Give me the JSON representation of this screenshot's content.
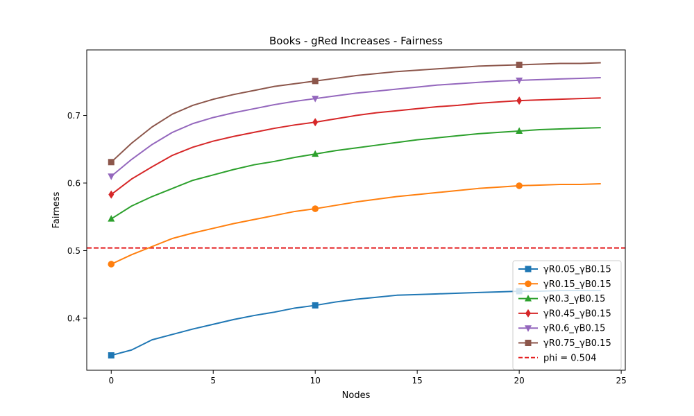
{
  "chart_data": {
    "type": "line",
    "title": "Books - gRed Increases - Fairness",
    "xlabel": "Nodes",
    "ylabel": "Fairness",
    "xlim": [
      -1.2,
      25.2
    ],
    "ylim": [
      0.323,
      0.797
    ],
    "xticks": [
      0,
      5,
      10,
      15,
      20,
      25
    ],
    "yticks": [
      0.4,
      0.5,
      0.6,
      0.7
    ],
    "grid": false,
    "legend_position": "lower-right",
    "x": [
      0,
      1,
      2,
      3,
      4,
      5,
      6,
      7,
      8,
      9,
      10,
      11,
      12,
      13,
      14,
      15,
      16,
      17,
      18,
      19,
      20,
      21,
      22,
      23,
      24
    ],
    "marker_indices": [
      0,
      10,
      20
    ],
    "series": [
      {
        "name": "γR0.05_γB0.15",
        "color": "#1f77b4",
        "marker": "square",
        "values": [
          0.345,
          0.353,
          0.368,
          0.376,
          0.384,
          0.391,
          0.398,
          0.404,
          0.409,
          0.415,
          0.419,
          0.424,
          0.428,
          0.431,
          0.434,
          0.435,
          0.436,
          0.437,
          0.438,
          0.439,
          0.44,
          0.44,
          0.441,
          0.441,
          0.441
        ]
      },
      {
        "name": "γR0.15_γB0.15",
        "color": "#ff7f0e",
        "marker": "circle",
        "values": [
          0.48,
          0.494,
          0.506,
          0.518,
          0.526,
          0.533,
          0.54,
          0.546,
          0.552,
          0.558,
          0.562,
          0.567,
          0.572,
          0.576,
          0.58,
          0.583,
          0.586,
          0.589,
          0.592,
          0.594,
          0.596,
          0.597,
          0.598,
          0.598,
          0.599
        ]
      },
      {
        "name": "γR0.3_γB0.15",
        "color": "#2ca02c",
        "marker": "triangle-up",
        "values": [
          0.547,
          0.566,
          0.58,
          0.592,
          0.604,
          0.612,
          0.62,
          0.627,
          0.632,
          0.638,
          0.643,
          0.648,
          0.652,
          0.656,
          0.66,
          0.664,
          0.667,
          0.67,
          0.673,
          0.675,
          0.677,
          0.679,
          0.68,
          0.681,
          0.682
        ]
      },
      {
        "name": "γR0.45_γB0.15",
        "color": "#d62728",
        "marker": "diamond",
        "values": [
          0.583,
          0.606,
          0.624,
          0.641,
          0.653,
          0.662,
          0.669,
          0.675,
          0.681,
          0.686,
          0.69,
          0.695,
          0.7,
          0.704,
          0.707,
          0.71,
          0.713,
          0.715,
          0.718,
          0.72,
          0.722,
          0.723,
          0.724,
          0.725,
          0.726
        ]
      },
      {
        "name": "γR0.6_γB0.15",
        "color": "#9467bd",
        "marker": "triangle-down",
        "values": [
          0.61,
          0.635,
          0.657,
          0.675,
          0.688,
          0.697,
          0.704,
          0.71,
          0.716,
          0.721,
          0.725,
          0.729,
          0.733,
          0.736,
          0.739,
          0.742,
          0.745,
          0.747,
          0.749,
          0.751,
          0.752,
          0.753,
          0.754,
          0.755,
          0.756
        ]
      },
      {
        "name": "γR0.75_γB0.15",
        "color": "#8c564b",
        "marker": "square",
        "values": [
          0.631,
          0.659,
          0.683,
          0.702,
          0.715,
          0.724,
          0.731,
          0.737,
          0.743,
          0.747,
          0.751,
          0.755,
          0.759,
          0.762,
          0.765,
          0.767,
          0.769,
          0.771,
          0.773,
          0.774,
          0.775,
          0.776,
          0.777,
          0.777,
          0.778
        ]
      }
    ],
    "threshold": {
      "name": "phi = 0.504",
      "value": 0.504,
      "color": "#e41a1c",
      "style": "dashed"
    }
  }
}
